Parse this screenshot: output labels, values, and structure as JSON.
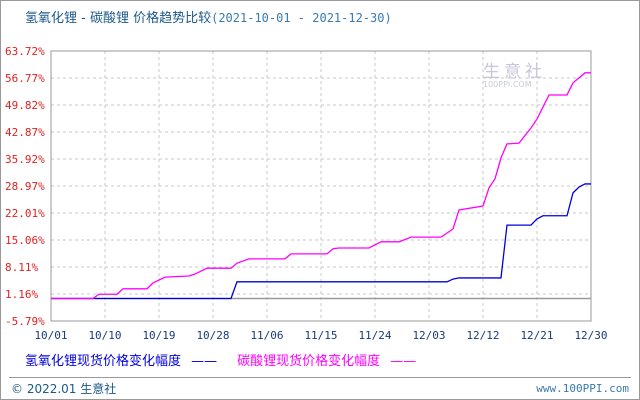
{
  "chart_data": {
    "type": "line",
    "title": "氢氧化锂 - 碳酸锂 价格趋势比较",
    "date_range": "(2021-10-01 - 2021-12-30)",
    "y_ticks": [
      "63.72%",
      "56.77%",
      "49.82%",
      "42.87%",
      "35.92%",
      "28.97%",
      "22.01%",
      "15.06%",
      "8.11%",
      "1.16%",
      "-5.79%"
    ],
    "ylim": [
      -5.79,
      63.72
    ],
    "x_ticks": [
      "10/01",
      "10/10",
      "10/19",
      "10/28",
      "11/06",
      "11/15",
      "11/24",
      "12/03",
      "12/12",
      "12/21",
      "12/30"
    ],
    "xlim": [
      "2021-10-01",
      "2021-12-30"
    ],
    "grid": true,
    "legend_placement": "bottom",
    "series": [
      {
        "name": "氢氧化锂现货价格变化幅度",
        "color": "#0000dd",
        "x": [
          "2021-10-01",
          "2021-10-31",
          "2021-11-01",
          "2021-12-06",
          "2021-12-07",
          "2021-12-08",
          "2021-12-15",
          "2021-12-16",
          "2021-12-20",
          "2021-12-21",
          "2021-12-22",
          "2021-12-26",
          "2021-12-27",
          "2021-12-28",
          "2021-12-29",
          "2021-12-30"
        ],
        "values": [
          0,
          0,
          4.3,
          4.3,
          5.0,
          5.3,
          5.3,
          18.9,
          18.9,
          20.5,
          21.3,
          21.3,
          27.2,
          28.7,
          29.5,
          29.5
        ]
      },
      {
        "name": "碳酸锂现货价格变化幅度",
        "color": "#ff00ff",
        "x": [
          "2021-10-01",
          "2021-10-08",
          "2021-10-09",
          "2021-10-12",
          "2021-10-13",
          "2021-10-17",
          "2021-10-18",
          "2021-10-20",
          "2021-10-24",
          "2021-10-25",
          "2021-10-27",
          "2021-10-31",
          "2021-11-01",
          "2021-11-03",
          "2021-11-09",
          "2021-11-10",
          "2021-11-16",
          "2021-11-17",
          "2021-11-18",
          "2021-11-23",
          "2021-11-25",
          "2021-11-28",
          "2021-11-30",
          "2021-12-05",
          "2021-12-07",
          "2021-12-08",
          "2021-12-12",
          "2021-12-13",
          "2021-12-14",
          "2021-12-15",
          "2021-12-16",
          "2021-12-18",
          "2021-12-20",
          "2021-12-21",
          "2021-12-23",
          "2021-12-26",
          "2021-12-27",
          "2021-12-29",
          "2021-12-30"
        ],
        "values": [
          0,
          0,
          1.1,
          1.1,
          2.5,
          2.5,
          4.0,
          5.5,
          5.8,
          6.3,
          7.8,
          7.8,
          9.1,
          10.2,
          10.2,
          11.5,
          11.5,
          12.8,
          13.0,
          13.0,
          14.6,
          14.6,
          15.8,
          15.8,
          17.9,
          22.8,
          23.8,
          28.5,
          30.8,
          36.2,
          39.8,
          40.0,
          43.9,
          46.2,
          52.4,
          52.4,
          55.5,
          58.1,
          58.1
        ]
      }
    ]
  },
  "watermark": {
    "name": "生意社",
    "sub": "100PPI.COM"
  },
  "footer": {
    "left": "© 2022.01 生意社",
    "right": "www.100PPI.com"
  }
}
